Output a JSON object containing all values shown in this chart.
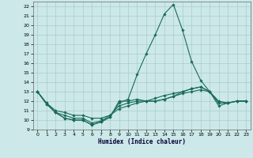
{
  "xlabel": "Humidex (Indice chaleur)",
  "xlim": [
    -0.5,
    23.5
  ],
  "ylim": [
    9,
    22.5
  ],
  "yticks": [
    9,
    10,
    11,
    12,
    13,
    14,
    15,
    16,
    17,
    18,
    19,
    20,
    21,
    22
  ],
  "xticks": [
    0,
    1,
    2,
    3,
    4,
    5,
    6,
    7,
    8,
    9,
    10,
    11,
    12,
    13,
    14,
    15,
    16,
    17,
    18,
    19,
    20,
    21,
    22,
    23
  ],
  "background_color": "#cce8e8",
  "grid_color": "#aacccc",
  "line_color": "#1a6b5a",
  "lines": [
    {
      "x": [
        0,
        1,
        2,
        3,
        4,
        5,
        6,
        7,
        8,
        9,
        10,
        11,
        12,
        13,
        14,
        15,
        16,
        17,
        18,
        19,
        20,
        21,
        22,
        23
      ],
      "y": [
        13.0,
        11.7,
        10.8,
        10.2,
        10.0,
        10.0,
        9.5,
        9.8,
        10.3,
        11.8,
        12.2,
        14.8,
        17.0,
        19.0,
        21.2,
        22.2,
        19.5,
        16.2,
        14.2,
        13.0,
        11.5,
        11.8,
        12.0,
        12.0
      ]
    },
    {
      "x": [
        0,
        1,
        2,
        3,
        4,
        5,
        6,
        7,
        8,
        9,
        10,
        11,
        12,
        13,
        14,
        15,
        16,
        17,
        18,
        19,
        20,
        21,
        22,
        23
      ],
      "y": [
        13.0,
        11.8,
        11.0,
        10.8,
        10.5,
        10.5,
        10.2,
        10.2,
        10.5,
        11.2,
        11.5,
        11.8,
        12.0,
        12.3,
        12.6,
        12.8,
        13.0,
        13.3,
        13.5,
        13.0,
        12.0,
        11.8,
        12.0,
        12.0
      ]
    },
    {
      "x": [
        0,
        1,
        2,
        3,
        4,
        5,
        6,
        7,
        8,
        9,
        10,
        11,
        12,
        13,
        14,
        15,
        16,
        17,
        18,
        19,
        20,
        21,
        22,
        23
      ],
      "y": [
        13.0,
        11.8,
        10.8,
        10.5,
        10.2,
        10.2,
        9.7,
        9.9,
        10.5,
        11.5,
        11.8,
        12.0,
        12.0,
        12.0,
        12.2,
        12.5,
        12.8,
        13.0,
        13.2,
        13.0,
        11.8,
        11.8,
        12.0,
        12.0
      ]
    },
    {
      "x": [
        0,
        1,
        2,
        3,
        4,
        5,
        6,
        7,
        8,
        9,
        10,
        11,
        12,
        13,
        14,
        15,
        16,
        17,
        18,
        19,
        20,
        21,
        22,
        23
      ],
      "y": [
        13.0,
        11.7,
        10.8,
        10.2,
        10.0,
        10.0,
        9.5,
        9.8,
        10.3,
        12.0,
        12.0,
        12.2,
        12.0,
        12.0,
        12.2,
        12.5,
        13.0,
        13.3,
        13.5,
        13.0,
        11.8,
        11.8,
        12.0,
        12.0
      ]
    }
  ],
  "marker": "D",
  "markersize": 1.8,
  "linewidth": 0.8
}
